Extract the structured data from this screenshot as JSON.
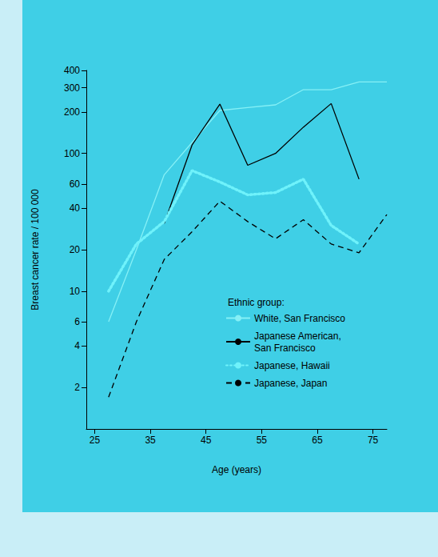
{
  "chart_data": {
    "type": "line",
    "x_label": "Age (years)",
    "y_label": "Breast cancer rate / 100 000",
    "legend_title": "Ethnic group:",
    "x": [
      27.5,
      32.5,
      37.5,
      42.5,
      47.5,
      52.5,
      57.5,
      62.5,
      67.5,
      72.5,
      77.5
    ],
    "series": [
      {
        "name": "White, San Francisco",
        "color": "#86f0f6",
        "line_style": "solid",
        "values": [
          6,
          20,
          70,
          120,
          205,
          215,
          225,
          290,
          290,
          330,
          330
        ]
      },
      {
        "name": "Japanese American,\nSan Francisco",
        "color": "#000000",
        "line_style": "solid",
        "values": [
          null,
          null,
          31,
          115,
          228,
          82,
          100,
          155,
          230,
          65,
          null
        ]
      },
      {
        "name": "Japanese, Hawaii",
        "color": "#6ff2fb",
        "line_style": "dotted",
        "values": [
          10,
          22,
          32,
          75,
          62,
          50,
          52,
          65,
          30,
          22,
          null
        ]
      },
      {
        "name": "Japanese, Japan",
        "color": "#000000",
        "line_style": "dashed",
        "values": [
          1.7,
          6,
          17,
          27,
          45,
          32,
          24,
          33,
          22,
          19,
          36
        ]
      }
    ],
    "xlim": [
      23.5,
      77.5
    ],
    "xticks": [
      25,
      35,
      45,
      55,
      65,
      75
    ],
    "ylim": [
      1,
      400
    ],
    "yticks": [
      2,
      4,
      6,
      10,
      20,
      40,
      60,
      100,
      200,
      300,
      400
    ],
    "log": "y",
    "grid": false,
    "legend": "lower right",
    "marker": "none"
  }
}
